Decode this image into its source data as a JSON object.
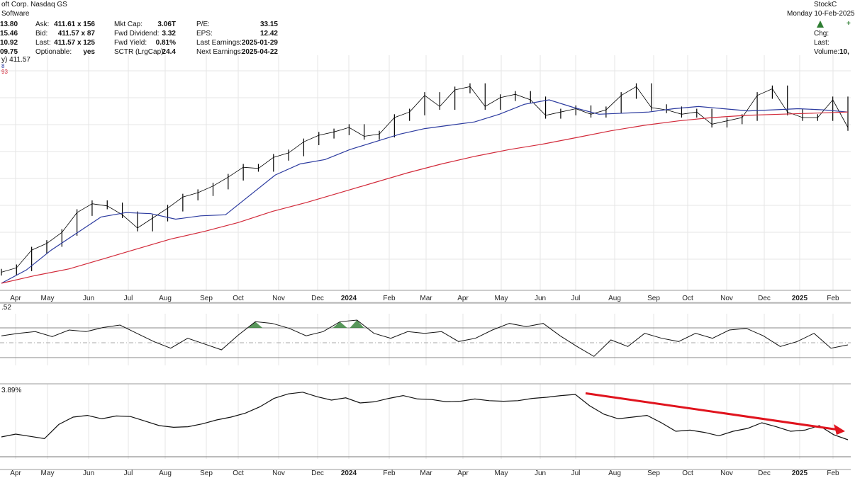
{
  "header": {
    "symbol_name": "oft Corp. Nasdaq GS",
    "industry": "Software",
    "brand": "StockC",
    "date": "Monday 10-Feb-2025",
    "change_symbol": "+",
    "right_labels": [
      "Chg:",
      "Last:",
      "Volume:"
    ],
    "volume_value": "10,",
    "ohlc_partial": [
      "13.80",
      "15.46",
      "10.92",
      "09.75"
    ],
    "quote_fields": [
      {
        "label": "Ask:",
        "value": "411.61 x 156"
      },
      {
        "label": "Bid:",
        "value": "411.57 x 87"
      },
      {
        "label": "Last:",
        "value": "411.57 x 125"
      },
      {
        "label": "Optionable:",
        "value": "yes"
      }
    ],
    "fundamentals_1": [
      {
        "label": "Mkt Cap:",
        "value": "3.06T"
      },
      {
        "label": "Fwd Dividend:",
        "value": "3.32"
      },
      {
        "label": "Fwd Yield:",
        "value": "0.81%"
      },
      {
        "label": "SCTR (LrgCap):",
        "value": "24.4"
      }
    ],
    "fundamentals_2": [
      {
        "label": "P/E:",
        "value": "33.15"
      },
      {
        "label": "EPS:",
        "value": "12.42"
      },
      {
        "label": "Last Earnings:",
        "value": "2025-01-29"
      },
      {
        "label": "Next Earnings:",
        "value": "2025-04-22"
      }
    ],
    "price_legend": "y) 411.57",
    "ma_legend_1": "8",
    "ma_legend_2": "93"
  },
  "panels": {
    "rsi_label": ".52",
    "rel_label": "3.89%"
  },
  "colors": {
    "price": "#000000",
    "ma_short": "#2b3a9f",
    "ma_long": "#d22a3a",
    "rsi_fill": "#2e7d32",
    "trend_arrow": "#e0141e",
    "grid": "#e6e6e6",
    "ma_legend_1": "#2b3a9f",
    "ma_legend_2": "#d22a3a",
    "brand": "#666666"
  },
  "chart_data": [
    {
      "type": "line",
      "title": "",
      "x_ticks": [
        "Apr",
        "May",
        "Jun",
        "Jul",
        "Aug",
        "Sep",
        "Oct",
        "Nov",
        "Dec",
        "2024",
        "Feb",
        "Mar",
        "Apr",
        "May",
        "Jun",
        "Jul",
        "Aug",
        "Sep",
        "Oct",
        "Nov",
        "Dec",
        "2025",
        "Feb"
      ],
      "ylim": [
        270,
        470
      ],
      "grid": true,
      "series": [
        {
          "values": [
            280,
            284,
            300,
            306,
            316,
            334,
            342,
            340,
            332,
            320,
            329,
            338,
            348,
            352,
            358,
            366,
            375,
            374,
            384,
            388,
            398,
            404,
            407,
            411,
            403,
            405,
            420,
            425,
            440,
            430,
            445,
            448,
            430,
            438,
            441,
            436,
            422,
            425,
            428,
            423,
            427,
            440,
            448,
            429,
            427,
            423,
            425,
            414,
            417,
            420,
            440,
            446,
            425,
            420,
            420,
            436,
            411
          ]
        },
        {
          "values": [
            270,
            282,
            300,
            315,
            330,
            334,
            333,
            328,
            331,
            332,
            350,
            368,
            378,
            382,
            391,
            398,
            405,
            410,
            413,
            416,
            423,
            432,
            436,
            429,
            423,
            424,
            425,
            428,
            430,
            428,
            426,
            427,
            428,
            427,
            425
          ]
        },
        {
          "values": [
            270,
            277,
            283,
            292,
            301,
            310,
            317,
            325,
            335,
            343,
            352,
            361,
            370,
            378,
            385,
            391,
            396,
            402,
            408,
            413,
            417,
            420,
            422,
            423,
            424,
            425
          ]
        }
      ]
    },
    {
      "type": "line",
      "title": "",
      "ylim": [
        20,
        80
      ],
      "series": [
        {
          "values": [
            55,
            58,
            60,
            54,
            62,
            60,
            65,
            68,
            58,
            48,
            40,
            52,
            45,
            38,
            56,
            72,
            70,
            64,
            55,
            60,
            72,
            74,
            58,
            52,
            60,
            58,
            60,
            48,
            52,
            62,
            70,
            66,
            70,
            55,
            42,
            30,
            50,
            42,
            58,
            52,
            48,
            58,
            52,
            62,
            64,
            55,
            42,
            48,
            58,
            40,
            44
          ]
        }
      ]
    },
    {
      "type": "line",
      "title": "",
      "series": [
        {
          "values": [
            20,
            25,
            21,
            17,
            42,
            55,
            58,
            52,
            57,
            56,
            48,
            40,
            37,
            38,
            43,
            50,
            55,
            62,
            73,
            88,
            96,
            99,
            91,
            85,
            89,
            80,
            82,
            88,
            93,
            87,
            86,
            82,
            83,
            87,
            84,
            83,
            84,
            88,
            90,
            93,
            95,
            75,
            60,
            52,
            55,
            58,
            45,
            30,
            32,
            28,
            22,
            30,
            35,
            45,
            38,
            30,
            32,
            40,
            24,
            15
          ]
        },
        {
          "values": [
            97,
            30
          ]
        }
      ]
    }
  ]
}
